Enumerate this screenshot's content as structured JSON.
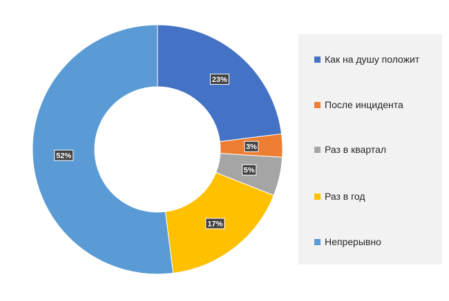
{
  "chart_data": {
    "type": "pie",
    "style": "donut",
    "title": "",
    "categories": [
      "Как на душу положит",
      "После инцидента",
      "Раз в квартал",
      "Раз в год",
      "Непрерывно"
    ],
    "values": [
      23,
      3,
      5,
      17,
      52
    ],
    "labels": [
      "23%",
      "3%",
      "5%",
      "17%",
      "52%"
    ],
    "colors": [
      "#4472c4",
      "#ed7d31",
      "#a5a5a5",
      "#ffc000",
      "#5b9bd5"
    ],
    "legend_position": "right",
    "start_angle_deg": 0,
    "direction": "clockwise"
  }
}
